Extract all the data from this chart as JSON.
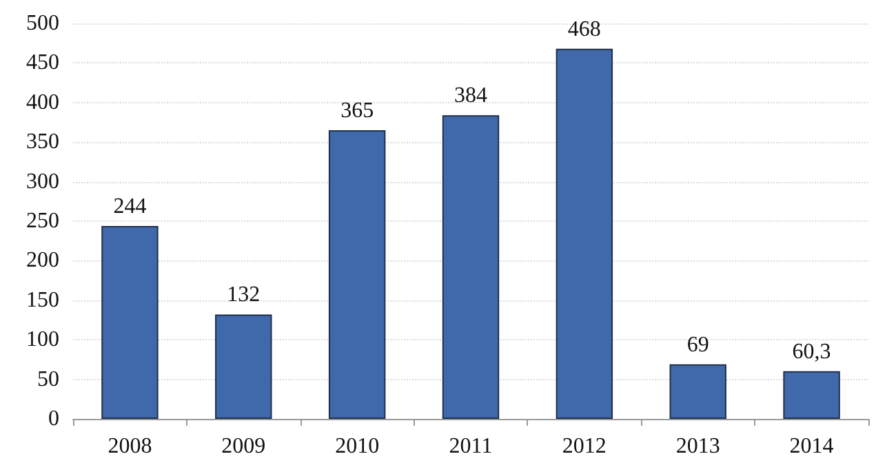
{
  "chart_data": {
    "type": "bar",
    "categories": [
      "2008",
      "2009",
      "2010",
      "2011",
      "2012",
      "2013",
      "2014"
    ],
    "values": [
      244,
      132,
      365,
      384,
      468,
      69,
      60.3
    ],
    "value_labels": [
      "244",
      "132",
      "365",
      "384",
      "468",
      "69",
      "60,3"
    ],
    "color": "#4069ab",
    "ylim": [
      0,
      500
    ],
    "yticks": [
      0,
      50,
      100,
      150,
      200,
      250,
      300,
      350,
      400,
      450,
      500
    ],
    "grid": "y"
  }
}
